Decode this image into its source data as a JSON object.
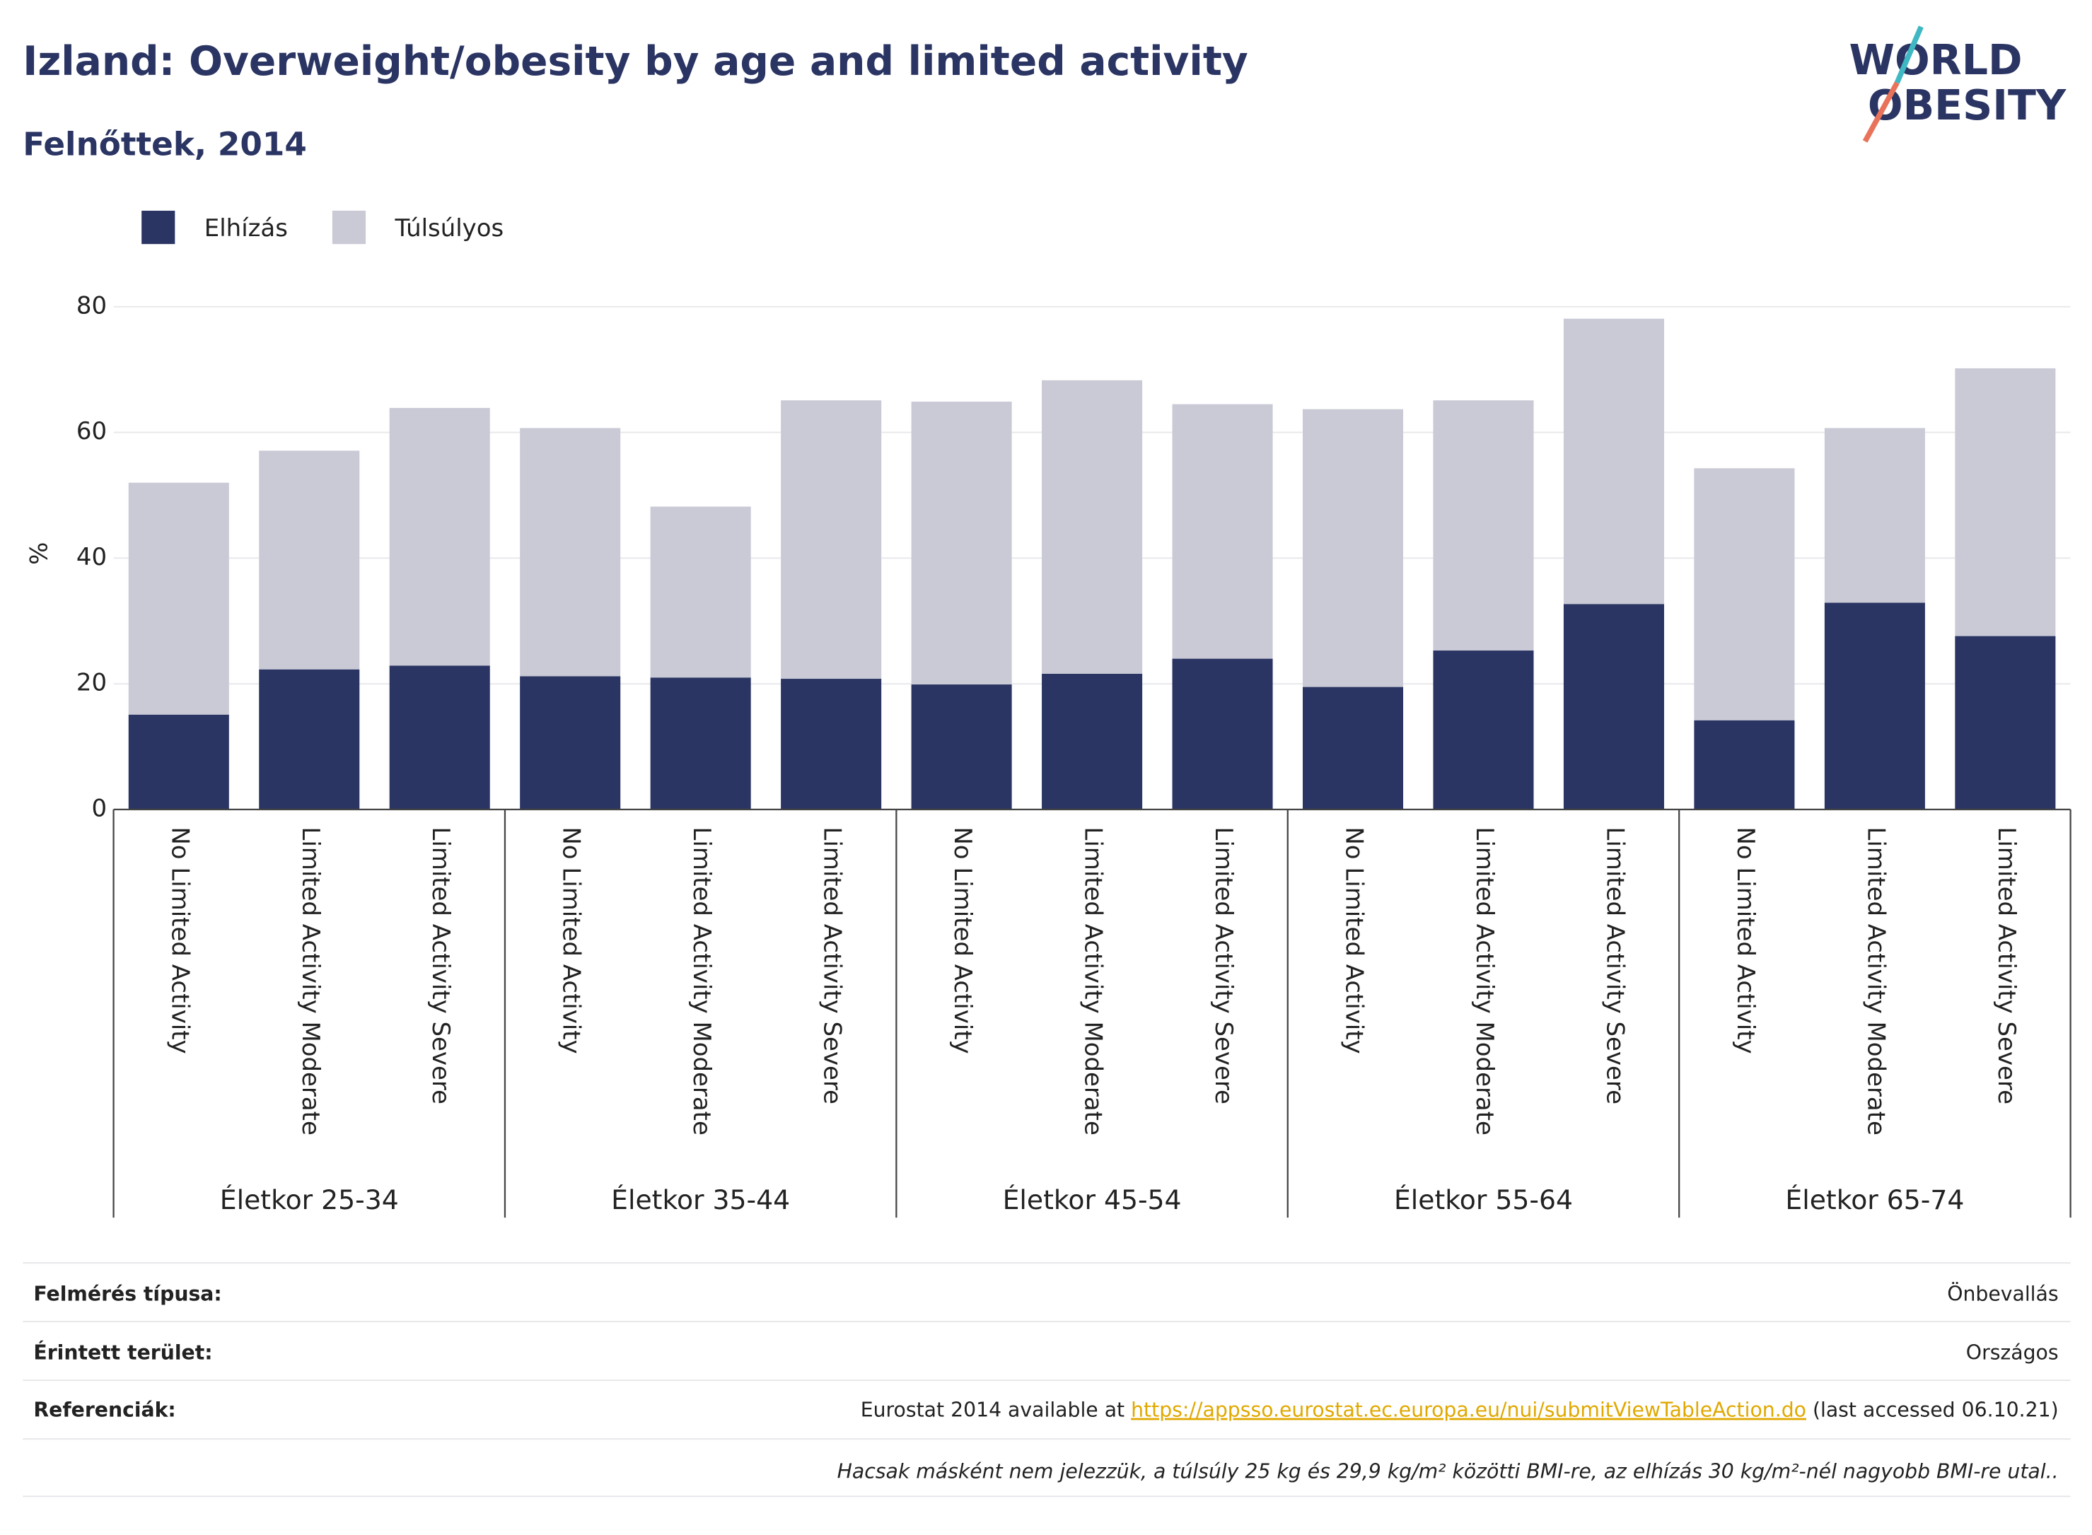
{
  "chart_data": {
    "type": "stacked_bar",
    "title": "Izland: Overweight/obesity by age and limited activity",
    "subtitle": "Felnőttek, 2014",
    "y_label": "%",
    "categories": [
      "No Limited Activity",
      "Limited Activity Moderate",
      "Limited Activity Severe",
      "No Limited Activity",
      "Limited Activity Moderate",
      "Limited Activity Severe",
      "No Limited Activity",
      "Limited Activity Moderate",
      "Limited Activity Severe",
      "No Limited Activity",
      "Limited Activity Moderate",
      "Limited Activity Severe",
      "No Limited Activity",
      "Limited Activity Moderate",
      "Limited Activity Severe"
    ],
    "groups": [
      "Életkor 25-34",
      "Életkor 35-44",
      "Életkor 45-54",
      "Életkor 55-64",
      "Életkor 65-74"
    ],
    "series": [
      {
        "name": "Elhízás",
        "color": "#2b3563",
        "values": [
          15.1,
          22.3,
          22.9,
          21.2,
          21.0,
          20.8,
          19.9,
          21.6,
          24.0,
          19.5,
          25.3,
          32.7,
          14.2,
          32.9,
          27.6
        ]
      },
      {
        "name": "Túlsúlyos",
        "color": "#c9cad6",
        "values": [
          36.9,
          34.8,
          41.0,
          39.5,
          27.2,
          44.3,
          45.0,
          46.7,
          40.5,
          44.2,
          39.8,
          45.4,
          40.1,
          27.8,
          42.6
        ]
      }
    ],
    "ylim": [
      0,
      80
    ],
    "yticks": [
      0,
      20,
      40,
      60,
      80
    ],
    "grid": true,
    "legend": "top-left"
  },
  "logo": [
    "WORLD",
    "OBESITY"
  ],
  "footer": {
    "rows": [
      {
        "label": "Felmérés típusa:",
        "value": "Önbevallás"
      },
      {
        "label": "Érintett terület:",
        "value": "Országos"
      }
    ],
    "reference": {
      "label": "Referenciák:",
      "before": "Eurostat 2014 available at ",
      "link": "https://appsso.eurostat.ec.europa.eu/nui/submitViewTableAction.do",
      "after": " (last accessed 06.10.21)"
    },
    "note": "Hacsak másként nem jelezzük, a túlsúly 25 kg és 29,9 kg/m² közötti BMI-re, az elhízás 30 kg/m²-nél nagyobb BMI-re utal.."
  }
}
